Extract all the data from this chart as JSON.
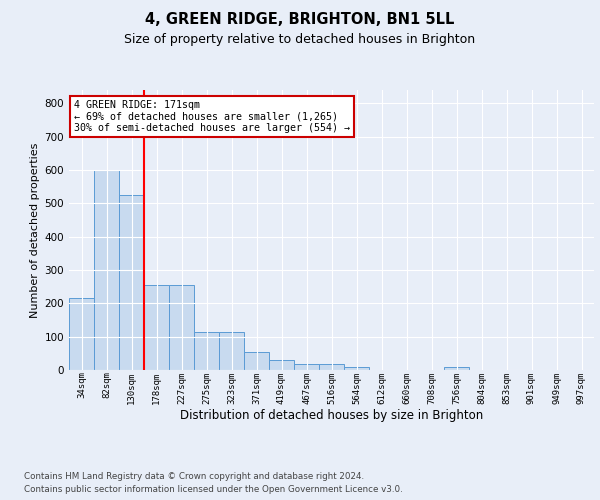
{
  "title1": "4, GREEN RIDGE, BRIGHTON, BN1 5LL",
  "title2": "Size of property relative to detached houses in Brighton",
  "xlabel": "Distribution of detached houses by size in Brighton",
  "ylabel": "Number of detached properties",
  "bar_labels": [
    "34sqm",
    "82sqm",
    "130sqm",
    "178sqm",
    "227sqm",
    "275sqm",
    "323sqm",
    "371sqm",
    "419sqm",
    "467sqm",
    "516sqm",
    "564sqm",
    "612sqm",
    "660sqm",
    "708sqm",
    "756sqm",
    "804sqm",
    "853sqm",
    "901sqm",
    "949sqm",
    "997sqm"
  ],
  "bar_heights": [
    215,
    600,
    525,
    255,
    255,
    115,
    115,
    53,
    30,
    17,
    17,
    10,
    0,
    0,
    0,
    10,
    0,
    0,
    0,
    0,
    0
  ],
  "bar_color": "#c8daef",
  "bar_edge_color": "#5b9bd5",
  "background_color": "#e8eef8",
  "grid_color": "#ffffff",
  "red_line_x": 2.5,
  "annotation_text": "4 GREEN RIDGE: 171sqm\n← 69% of detached houses are smaller (1,265)\n30% of semi-detached houses are larger (554) →",
  "annotation_box_facecolor": "#ffffff",
  "annotation_box_edgecolor": "#cc0000",
  "footer1": "Contains HM Land Registry data © Crown copyright and database right 2024.",
  "footer2": "Contains public sector information licensed under the Open Government Licence v3.0.",
  "ylim": [
    0,
    840
  ],
  "yticks": [
    0,
    100,
    200,
    300,
    400,
    500,
    600,
    700,
    800
  ]
}
